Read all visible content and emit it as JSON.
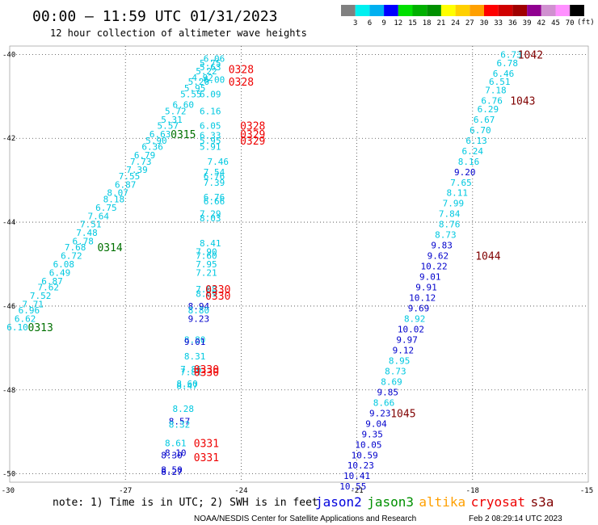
{
  "header": {
    "title": "00:00 — 11:59 UTC 01/31/2023",
    "subtitle": "12 hour collection of altimeter wave heights",
    "unit": "(ft)"
  },
  "colorbar": {
    "labels": [
      "3",
      "6",
      "9",
      "12",
      "15",
      "18",
      "21",
      "24",
      "27",
      "30",
      "33",
      "36",
      "39",
      "42",
      "45",
      "70"
    ],
    "colors": [
      "#808080",
      "#00f0f0",
      "#00b0f0",
      "#0000ff",
      "#00e000",
      "#00b000",
      "#009000",
      "#ffff00",
      "#ffd000",
      "#ffa000",
      "#ff0000",
      "#d00000",
      "#a00000",
      "#900090",
      "#d090d0",
      "#ff90ff",
      "#000000"
    ]
  },
  "axes": {
    "x_ticks": [
      {
        "v": -30,
        "label": "-30"
      },
      {
        "v": -27,
        "label": "-27"
      },
      {
        "v": -24,
        "label": "-24"
      },
      {
        "v": -21,
        "label": "-21"
      },
      {
        "v": -18,
        "label": "-18"
      },
      {
        "v": -15,
        "label": "-15"
      }
    ],
    "y_ticks": [
      {
        "v": -40,
        "label": "-40"
      },
      {
        "v": -42,
        "label": "-42"
      },
      {
        "v": -44,
        "label": "-44"
      },
      {
        "v": -46,
        "label": "-46"
      },
      {
        "v": -48,
        "label": "-48"
      },
      {
        "v": -50,
        "label": "-50"
      }
    ]
  },
  "footer": {
    "note": "note: 1) Time is in UTC; 2) SWH is in feet",
    "credit": "NOAA/NESDIS Center for Satellite Applications and Research",
    "timestamp": "Feb  2 08:29:14 UTC 2023",
    "legend": [
      {
        "name": "jason2",
        "color": "#0000dd"
      },
      {
        "name": "jason3",
        "color": "#009000"
      },
      {
        "name": "altika",
        "color": "#ffa000"
      },
      {
        "name": "cryosat",
        "color": "#ee0000"
      },
      {
        "name": "s3a",
        "color": "#800000"
      }
    ]
  },
  "chart_data": {
    "type": "scatter",
    "xlim": [
      -30,
      -15
    ],
    "ylim": [
      -50.2,
      -39.8
    ],
    "grid": true,
    "colors": {
      "cyan": "#00c8e0",
      "blue": "#0000cc",
      "green": "#007000",
      "red": "#ee0000",
      "maroon": "#800000"
    },
    "points": [
      {
        "lon": -24.7,
        "lat": -40.1,
        "label": "6.06",
        "c": "cyan"
      },
      {
        "lon": -24.8,
        "lat": -40.2,
        "label": "5.75",
        "c": "cyan"
      },
      {
        "lon": -24.8,
        "lat": -40.3,
        "label": "5.63",
        "c": "cyan"
      },
      {
        "lon": -24.9,
        "lat": -40.4,
        "label": "5.22",
        "c": "cyan"
      },
      {
        "lon": -25.0,
        "lat": -40.55,
        "label": "4.92",
        "c": "cyan"
      },
      {
        "lon": -24.7,
        "lat": -40.6,
        "label": "6.00",
        "c": "cyan"
      },
      {
        "lon": -25.1,
        "lat": -40.65,
        "label": "5.20",
        "c": "cyan"
      },
      {
        "lon": -25.2,
        "lat": -40.8,
        "label": "5.95",
        "c": "cyan"
      },
      {
        "lon": -25.3,
        "lat": -40.95,
        "label": "5.55",
        "c": "cyan"
      },
      {
        "lon": -24.8,
        "lat": -40.95,
        "label": "6.09",
        "c": "cyan"
      },
      {
        "lon": -25.5,
        "lat": -41.2,
        "label": "6.60",
        "c": "cyan"
      },
      {
        "lon": -25.7,
        "lat": -41.35,
        "label": "5.72",
        "c": "cyan"
      },
      {
        "lon": -24.8,
        "lat": -41.35,
        "label": "6.16",
        "c": "cyan"
      },
      {
        "lon": -25.8,
        "lat": -41.55,
        "label": "5.31",
        "c": "cyan"
      },
      {
        "lon": -25.9,
        "lat": -41.7,
        "label": "5.57",
        "c": "cyan"
      },
      {
        "lon": -24.8,
        "lat": -41.7,
        "label": "6.05",
        "c": "cyan"
      },
      {
        "lon": -26.1,
        "lat": -41.9,
        "label": "6.63",
        "c": "cyan"
      },
      {
        "lon": -24.8,
        "lat": -41.93,
        "label": "6.33",
        "c": "cyan"
      },
      {
        "lon": -26.2,
        "lat": -42.05,
        "label": "5.90",
        "c": "cyan"
      },
      {
        "lon": -24.8,
        "lat": -42.05,
        "label": "5.95",
        "c": "cyan"
      },
      {
        "lon": -26.3,
        "lat": -42.2,
        "label": "6.36",
        "c": "cyan"
      },
      {
        "lon": -24.8,
        "lat": -42.2,
        "label": "5.91",
        "c": "cyan"
      },
      {
        "lon": -26.5,
        "lat": -42.4,
        "label": "6.79",
        "c": "cyan"
      },
      {
        "lon": -26.6,
        "lat": -42.55,
        "label": "7.73",
        "c": "cyan"
      },
      {
        "lon": -24.6,
        "lat": -42.55,
        "label": "7.46",
        "c": "cyan"
      },
      {
        "lon": -26.7,
        "lat": -42.75,
        "label": "7.39",
        "c": "cyan"
      },
      {
        "lon": -26.9,
        "lat": -42.9,
        "label": "7.55",
        "c": "cyan"
      },
      {
        "lon": -24.7,
        "lat": -42.8,
        "label": "7.54",
        "c": "cyan"
      },
      {
        "lon": -24.7,
        "lat": -42.9,
        "label": "6.76",
        "c": "cyan"
      },
      {
        "lon": -24.7,
        "lat": -43.05,
        "label": "7.39",
        "c": "cyan"
      },
      {
        "lon": -27.0,
        "lat": -43.1,
        "label": "6.87",
        "c": "cyan"
      },
      {
        "lon": -27.2,
        "lat": -43.3,
        "label": "8.07",
        "c": "cyan"
      },
      {
        "lon": -24.7,
        "lat": -43.4,
        "label": "6.76",
        "c": "cyan"
      },
      {
        "lon": -27.3,
        "lat": -43.45,
        "label": "8.18",
        "c": "cyan"
      },
      {
        "lon": -24.7,
        "lat": -43.5,
        "label": "6.66",
        "c": "cyan"
      },
      {
        "lon": -27.5,
        "lat": -43.65,
        "label": "6.75",
        "c": "cyan"
      },
      {
        "lon": -27.7,
        "lat": -43.85,
        "label": "7.64",
        "c": "cyan"
      },
      {
        "lon": -24.8,
        "lat": -43.8,
        "label": "7.29",
        "c": "cyan"
      },
      {
        "lon": -24.8,
        "lat": -43.9,
        "label": "8.03",
        "c": "cyan"
      },
      {
        "lon": -27.9,
        "lat": -44.05,
        "label": "7.51",
        "c": "cyan"
      },
      {
        "lon": -28.0,
        "lat": -44.25,
        "label": "7.48",
        "c": "cyan"
      },
      {
        "lon": -28.1,
        "lat": -44.45,
        "label": "6.78",
        "c": "cyan"
      },
      {
        "lon": -24.8,
        "lat": -44.5,
        "label": "8.41",
        "c": "cyan"
      },
      {
        "lon": -28.3,
        "lat": -44.6,
        "label": "7.68",
        "c": "cyan"
      },
      {
        "lon": -24.9,
        "lat": -44.7,
        "label": "7.90",
        "c": "cyan"
      },
      {
        "lon": -28.4,
        "lat": -44.8,
        "label": "6.72",
        "c": "cyan"
      },
      {
        "lon": -24.9,
        "lat": -44.8,
        "label": "7.60",
        "c": "cyan"
      },
      {
        "lon": -28.6,
        "lat": -45.0,
        "label": "6.08",
        "c": "cyan"
      },
      {
        "lon": -24.9,
        "lat": -45.0,
        "label": "7.95",
        "c": "cyan"
      },
      {
        "lon": -28.7,
        "lat": -45.2,
        "label": "6.49",
        "c": "cyan"
      },
      {
        "lon": -24.9,
        "lat": -45.2,
        "label": "7.21",
        "c": "cyan"
      },
      {
        "lon": -28.9,
        "lat": -45.4,
        "label": "6.87",
        "c": "cyan"
      },
      {
        "lon": -29.0,
        "lat": -45.55,
        "label": "7.62",
        "c": "cyan"
      },
      {
        "lon": -24.9,
        "lat": -45.6,
        "label": "7.68",
        "c": "cyan"
      },
      {
        "lon": -24.9,
        "lat": -45.7,
        "label": "8.69",
        "c": "cyan"
      },
      {
        "lon": -29.2,
        "lat": -45.75,
        "label": "7.52",
        "c": "cyan"
      },
      {
        "lon": -29.4,
        "lat": -45.95,
        "label": "7.71",
        "c": "cyan"
      },
      {
        "lon": -25.1,
        "lat": -46.0,
        "label": "8.94",
        "c": "blue"
      },
      {
        "lon": -25.1,
        "lat": -46.1,
        "label": "8.80",
        "c": "cyan"
      },
      {
        "lon": -29.5,
        "lat": -46.1,
        "label": "6.96",
        "c": "cyan"
      },
      {
        "lon": -29.6,
        "lat": -46.3,
        "label": "6.62",
        "c": "cyan"
      },
      {
        "lon": -25.1,
        "lat": -46.3,
        "label": "9.23",
        "c": "blue"
      },
      {
        "lon": -29.8,
        "lat": -46.5,
        "label": "6.10",
        "c": "cyan"
      },
      {
        "lon": -25.2,
        "lat": -46.8,
        "label": "8.80",
        "c": "cyan"
      },
      {
        "lon": -25.2,
        "lat": -46.85,
        "label": "9.01",
        "c": "blue"
      },
      {
        "lon": -25.2,
        "lat": -47.2,
        "label": "8.31",
        "c": "cyan"
      },
      {
        "lon": -25.3,
        "lat": -47.5,
        "label": "7.86",
        "c": "cyan"
      },
      {
        "lon": -25.3,
        "lat": -47.57,
        "label": "7.81",
        "c": "cyan"
      },
      {
        "lon": -25.4,
        "lat": -47.85,
        "label": "8.60",
        "c": "cyan"
      },
      {
        "lon": -25.4,
        "lat": -47.9,
        "label": "8.47",
        "c": "cyan"
      },
      {
        "lon": -25.5,
        "lat": -48.45,
        "label": "8.28",
        "c": "cyan"
      },
      {
        "lon": -25.6,
        "lat": -48.75,
        "label": "8.57",
        "c": "blue"
      },
      {
        "lon": -25.6,
        "lat": -48.82,
        "label": "8.32",
        "c": "cyan"
      },
      {
        "lon": -25.7,
        "lat": -49.27,
        "label": "8.61",
        "c": "cyan"
      },
      {
        "lon": -25.7,
        "lat": -49.5,
        "label": "8.10",
        "c": "blue"
      },
      {
        "lon": -25.8,
        "lat": -49.55,
        "label": "8.30",
        "c": "blue"
      },
      {
        "lon": -25.8,
        "lat": -49.9,
        "label": "8.50",
        "c": "blue"
      },
      {
        "lon": -25.8,
        "lat": -49.95,
        "label": "8.27",
        "c": "blue"
      },
      {
        "lon": -17.0,
        "lat": -40.0,
        "label": "6.73",
        "c": "cyan"
      },
      {
        "lon": -17.1,
        "lat": -40.2,
        "label": "6.78",
        "c": "cyan"
      },
      {
        "lon": -17.2,
        "lat": -40.45,
        "label": "6.46",
        "c": "cyan"
      },
      {
        "lon": -17.3,
        "lat": -40.65,
        "label": "6.51",
        "c": "cyan"
      },
      {
        "lon": -17.4,
        "lat": -40.85,
        "label": "7.18",
        "c": "cyan"
      },
      {
        "lon": -17.5,
        "lat": -41.1,
        "label": "6.76",
        "c": "cyan"
      },
      {
        "lon": -17.6,
        "lat": -41.3,
        "label": "6.29",
        "c": "cyan"
      },
      {
        "lon": -17.7,
        "lat": -41.55,
        "label": "6.67",
        "c": "cyan"
      },
      {
        "lon": -17.8,
        "lat": -41.8,
        "label": "6.70",
        "c": "cyan"
      },
      {
        "lon": -17.9,
        "lat": -42.05,
        "label": "6.13",
        "c": "cyan"
      },
      {
        "lon": -18.0,
        "lat": -42.3,
        "label": "6.24",
        "c": "cyan"
      },
      {
        "lon": -18.1,
        "lat": -42.55,
        "label": "8.16",
        "c": "cyan"
      },
      {
        "lon": -18.2,
        "lat": -42.8,
        "label": "9.20",
        "c": "blue"
      },
      {
        "lon": -18.3,
        "lat": -43.05,
        "label": "7.65",
        "c": "cyan"
      },
      {
        "lon": -18.4,
        "lat": -43.3,
        "label": "8.11",
        "c": "cyan"
      },
      {
        "lon": -18.5,
        "lat": -43.55,
        "label": "7.99",
        "c": "cyan"
      },
      {
        "lon": -18.6,
        "lat": -43.8,
        "label": "7.84",
        "c": "cyan"
      },
      {
        "lon": -18.6,
        "lat": -44.05,
        "label": "8.76",
        "c": "cyan"
      },
      {
        "lon": -18.7,
        "lat": -44.3,
        "label": "8.73",
        "c": "cyan"
      },
      {
        "lon": -18.8,
        "lat": -44.55,
        "label": "9.83",
        "c": "blue"
      },
      {
        "lon": -18.9,
        "lat": -44.8,
        "label": "9.62",
        "c": "blue"
      },
      {
        "lon": -19.0,
        "lat": -45.05,
        "label": "10.22",
        "c": "blue"
      },
      {
        "lon": -19.1,
        "lat": -45.3,
        "label": "9.01",
        "c": "blue"
      },
      {
        "lon": -19.2,
        "lat": -45.55,
        "label": "9.91",
        "c": "blue"
      },
      {
        "lon": -19.3,
        "lat": -45.8,
        "label": "10.12",
        "c": "blue"
      },
      {
        "lon": -19.4,
        "lat": -46.05,
        "label": "9.69",
        "c": "blue"
      },
      {
        "lon": -19.5,
        "lat": -46.3,
        "label": "8.92",
        "c": "cyan"
      },
      {
        "lon": -19.6,
        "lat": -46.55,
        "label": "10.02",
        "c": "blue"
      },
      {
        "lon": -19.7,
        "lat": -46.8,
        "label": "9.97",
        "c": "blue"
      },
      {
        "lon": -19.8,
        "lat": -47.05,
        "label": "9.12",
        "c": "blue"
      },
      {
        "lon": -19.9,
        "lat": -47.3,
        "label": "8.95",
        "c": "cyan"
      },
      {
        "lon": -20.0,
        "lat": -47.55,
        "label": "8.73",
        "c": "cyan"
      },
      {
        "lon": -20.1,
        "lat": -47.8,
        "label": "8.69",
        "c": "cyan"
      },
      {
        "lon": -20.2,
        "lat": -48.05,
        "label": "9.85",
        "c": "blue"
      },
      {
        "lon": -20.3,
        "lat": -48.3,
        "label": "8.66",
        "c": "cyan"
      },
      {
        "lon": -20.4,
        "lat": -48.55,
        "label": "9.23",
        "c": "blue"
      },
      {
        "lon": -20.5,
        "lat": -48.8,
        "label": "9.04",
        "c": "blue"
      },
      {
        "lon": -20.6,
        "lat": -49.05,
        "label": "9.35",
        "c": "blue"
      },
      {
        "lon": -20.7,
        "lat": -49.3,
        "label": "10.05",
        "c": "blue"
      },
      {
        "lon": -20.8,
        "lat": -49.55,
        "label": "10.59",
        "c": "blue"
      },
      {
        "lon": -20.9,
        "lat": -49.8,
        "label": "10.23",
        "c": "blue"
      },
      {
        "lon": -21.0,
        "lat": -50.05,
        "label": "10.41",
        "c": "blue"
      },
      {
        "lon": -21.1,
        "lat": -50.3,
        "label": "10.55",
        "c": "blue"
      }
    ],
    "time_labels": [
      {
        "lon": -24.0,
        "lat": -40.35,
        "label": "0328",
        "c": "red"
      },
      {
        "lon": -24.0,
        "lat": -40.65,
        "label": "0328",
        "c": "red"
      },
      {
        "lon": -23.7,
        "lat": -41.7,
        "label": "0328",
        "c": "red"
      },
      {
        "lon": -23.7,
        "lat": -41.9,
        "label": "0329",
        "c": "red"
      },
      {
        "lon": -23.7,
        "lat": -42.05,
        "label": "0329",
        "c": "red"
      },
      {
        "lon": -25.5,
        "lat": -41.9,
        "label": "0315",
        "c": "green"
      },
      {
        "lon": -27.4,
        "lat": -44.6,
        "label": "0314",
        "c": "green"
      },
      {
        "lon": -29.2,
        "lat": -46.5,
        "label": "0313",
        "c": "green"
      },
      {
        "lon": -24.6,
        "lat": -45.6,
        "label": "0330",
        "c": "red"
      },
      {
        "lon": -24.6,
        "lat": -45.75,
        "label": "0330",
        "c": "red"
      },
      {
        "lon": -24.9,
        "lat": -47.5,
        "label": "0330",
        "c": "red"
      },
      {
        "lon": -24.9,
        "lat": -47.57,
        "label": "0330",
        "c": "red"
      },
      {
        "lon": -24.9,
        "lat": -49.27,
        "label": "0331",
        "c": "red"
      },
      {
        "lon": -24.9,
        "lat": -49.6,
        "label": "0331",
        "c": "red"
      },
      {
        "lon": -16.5,
        "lat": -40.0,
        "label": "1042",
        "c": "maroon"
      },
      {
        "lon": -16.7,
        "lat": -41.1,
        "label": "1043",
        "c": "maroon"
      },
      {
        "lon": -17.6,
        "lat": -44.8,
        "label": "1044",
        "c": "maroon"
      },
      {
        "lon": -19.8,
        "lat": -48.55,
        "label": "1045",
        "c": "maroon"
      }
    ]
  }
}
